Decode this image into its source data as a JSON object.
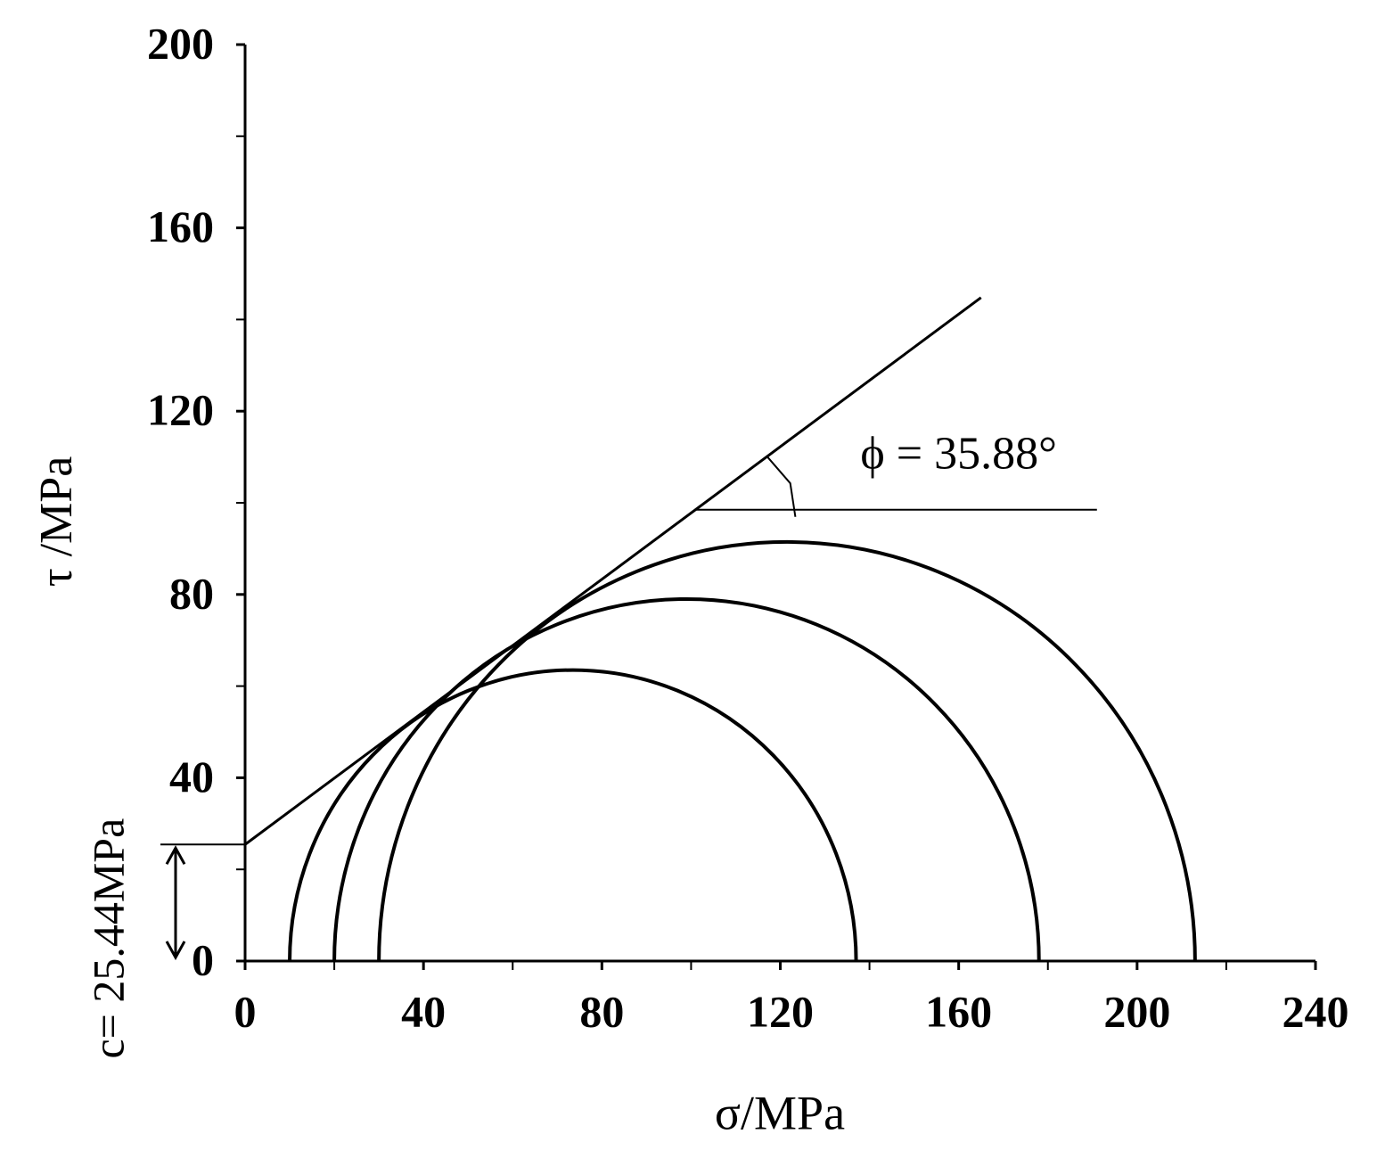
{
  "chart_data": {
    "type": "mohr",
    "xlabel": "σ/MPa",
    "ylabel": "τ /MPa",
    "xlim": [
      0,
      240
    ],
    "ylim": [
      0,
      200
    ],
    "xticks": [
      0,
      40,
      80,
      120,
      160,
      200,
      240
    ],
    "yticks": [
      0,
      40,
      80,
      120,
      160,
      200
    ],
    "xminorticks": [
      20,
      60,
      100,
      140,
      180,
      220
    ],
    "yminorticks": [
      20,
      60,
      100,
      140,
      180
    ],
    "circles": [
      {
        "sigma3": 10,
        "sigma1": 137
      },
      {
        "sigma3": 20,
        "sigma1": 178
      },
      {
        "sigma3": 30,
        "sigma1": 213
      }
    ],
    "cohesion": {
      "value": 25.44,
      "label": "c= 25.44MPa"
    },
    "friction_angle": {
      "value": 35.88,
      "label": "ϕ = 35.88°"
    },
    "envelope_sigma_max": 165,
    "angle_reference_sigma": [
      101,
      191
    ],
    "color": "#000000"
  }
}
